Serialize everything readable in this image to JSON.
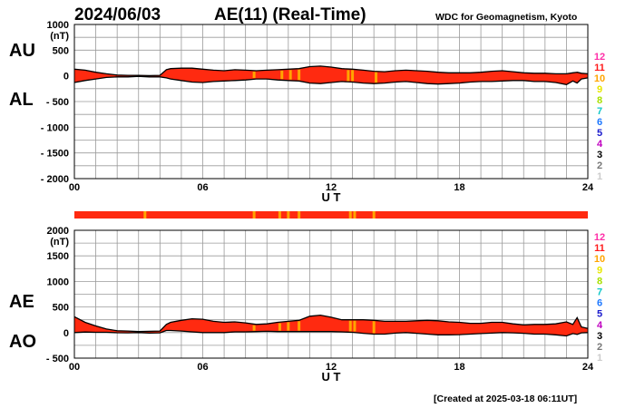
{
  "header": {
    "date": "2024/06/03",
    "title": "AE(11) (Real-Time)",
    "source": "WDC for Geomagnetism, Kyoto"
  },
  "footer": {
    "created": "[Created at 2025-03-18 06:11UT]"
  },
  "colors": {
    "fill": "#ff2a10",
    "outline": "#000000",
    "station_scale": {
      "12": "#ff2fa8",
      "11": "#ff1a1a",
      "10": "#ffa500",
      "9": "#e8e800",
      "8": "#a8e000",
      "7": "#12c8c8",
      "6": "#1e78ff",
      "5": "#1a1acc",
      "4": "#c000c0",
      "3": "#000000",
      "2": "#777777",
      "1": "#cccccc"
    }
  },
  "station_scale_labels": [
    "12",
    "11",
    "10",
    "9",
    "8",
    "7",
    "6",
    "5",
    "4",
    "3",
    "2",
    "1"
  ],
  "chart_data": [
    {
      "type": "area",
      "panel": "AU/AL",
      "ylabel_unit": "(nT)",
      "index_labels": [
        "AU",
        "AL"
      ],
      "xlabel": "U T",
      "xlim": [
        0,
        24
      ],
      "xticks": [
        "00",
        "06",
        "12",
        "18",
        "24"
      ],
      "ylim": [
        -2000,
        1000
      ],
      "yticks": [
        "1000",
        "500",
        "0",
        "- 500",
        "- 1000",
        "- 1500",
        "- 2000"
      ],
      "grid": true,
      "x": [
        0,
        0.5,
        1,
        1.5,
        2,
        2.5,
        3,
        3.5,
        4,
        4.3,
        4.5,
        5,
        5.5,
        6,
        6.5,
        7,
        7.5,
        8,
        8.5,
        9,
        9.5,
        10,
        10.5,
        11,
        11.5,
        12,
        12.5,
        13,
        13.5,
        14,
        14.5,
        15,
        15.5,
        16,
        16.5,
        17,
        17.5,
        18,
        18.5,
        19,
        19.5,
        20,
        20.5,
        21,
        21.5,
        22,
        22.5,
        23,
        23.3,
        23.5,
        23.7,
        24
      ],
      "series": [
        {
          "name": "AU",
          "values": [
            130,
            110,
            70,
            40,
            15,
            10,
            10,
            5,
            10,
            120,
            140,
            150,
            150,
            130,
            110,
            100,
            120,
            110,
            100,
            110,
            120,
            130,
            140,
            180,
            190,
            170,
            140,
            130,
            110,
            90,
            80,
            100,
            110,
            100,
            90,
            70,
            60,
            60,
            60,
            70,
            90,
            100,
            80,
            60,
            50,
            50,
            40,
            40,
            60,
            70,
            50,
            40
          ]
        },
        {
          "name": "AL",
          "values": [
            -130,
            -90,
            -60,
            -30,
            -20,
            -20,
            -10,
            -20,
            -20,
            -40,
            -60,
            -90,
            -120,
            -130,
            -110,
            -100,
            -90,
            -80,
            -60,
            -60,
            -80,
            -90,
            -100,
            -140,
            -150,
            -130,
            -110,
            -120,
            -140,
            -150,
            -140,
            -120,
            -110,
            -130,
            -150,
            -160,
            -150,
            -140,
            -120,
            -110,
            -110,
            -100,
            -90,
            -90,
            -110,
            -110,
            -130,
            -170,
            -100,
            -140,
            -60,
            -40
          ]
        }
      ]
    },
    {
      "type": "area",
      "panel": "AE/AO",
      "ylabel_unit": "(nT)",
      "index_labels": [
        "AE",
        "AO"
      ],
      "xlabel": "U T",
      "xlim": [
        0,
        24
      ],
      "xticks": [
        "00",
        "06",
        "12",
        "18",
        "24"
      ],
      "ylim": [
        -500,
        2000
      ],
      "yticks": [
        "2000",
        "1500",
        "1000",
        "500",
        "0",
        "- 500"
      ],
      "grid": true,
      "x": [
        0,
        0.5,
        1,
        1.5,
        2,
        2.5,
        3,
        3.5,
        4,
        4.3,
        4.5,
        5,
        5.5,
        6,
        6.5,
        7,
        7.5,
        8,
        8.5,
        9,
        9.5,
        10,
        10.5,
        11,
        11.5,
        12,
        12.5,
        13,
        13.5,
        14,
        14.5,
        15,
        15.5,
        16,
        16.5,
        17,
        17.5,
        18,
        18.5,
        19,
        19.5,
        20,
        20.5,
        21,
        21.5,
        22,
        22.5,
        23,
        23.3,
        23.5,
        23.7,
        24
      ],
      "series": [
        {
          "name": "AE",
          "values": [
            310,
            200,
            130,
            70,
            35,
            30,
            20,
            25,
            30,
            160,
            200,
            240,
            270,
            260,
            220,
            200,
            210,
            190,
            160,
            170,
            200,
            220,
            240,
            320,
            340,
            300,
            250,
            250,
            250,
            240,
            220,
            220,
            220,
            230,
            240,
            230,
            210,
            200,
            180,
            180,
            200,
            200,
            170,
            150,
            160,
            160,
            170,
            210,
            160,
            290,
            110,
            80
          ]
        },
        {
          "name": "AO",
          "values": [
            0,
            10,
            5,
            5,
            -3,
            -5,
            0,
            -8,
            -5,
            40,
            40,
            30,
            15,
            0,
            0,
            0,
            15,
            15,
            20,
            25,
            20,
            20,
            20,
            20,
            20,
            20,
            15,
            5,
            -15,
            -30,
            -30,
            -10,
            0,
            -15,
            -30,
            -45,
            -45,
            -40,
            -30,
            -20,
            -10,
            0,
            -5,
            -15,
            -30,
            -30,
            -45,
            -65,
            -20,
            -35,
            -5,
            0
          ]
        }
      ]
    }
  ],
  "station_strips": [
    {
      "panel": "AU/AL",
      "marks": [
        8.4,
        9.7,
        10.1,
        10.5,
        12.8,
        13.0,
        14.1
      ]
    },
    {
      "panel": "middle",
      "marks": [
        3.3,
        8.4,
        9.6,
        10.0,
        10.5,
        12.9,
        13.1,
        14.0
      ]
    },
    {
      "panel": "AE/AO",
      "marks": [
        3.3,
        8.4,
        9.6,
        10.0,
        10.5,
        12.9,
        13.1,
        14.0
      ]
    }
  ]
}
